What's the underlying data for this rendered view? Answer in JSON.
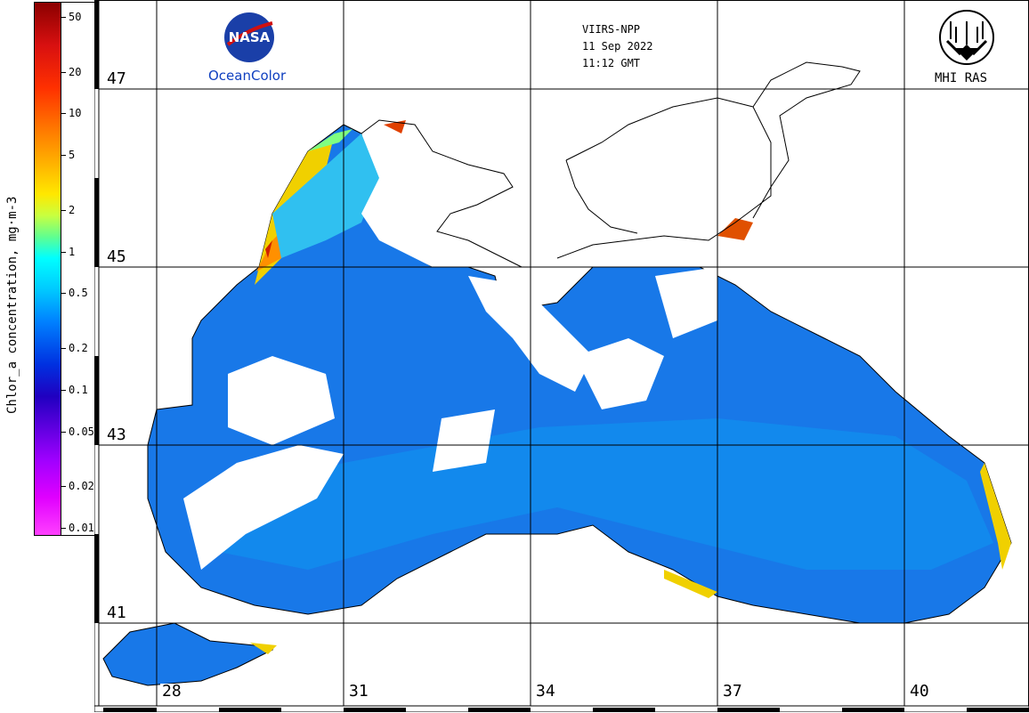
{
  "colorbar": {
    "title": "Chlor_a concentration, mg·m-3",
    "ticks": [
      {
        "label": "50",
        "value": 50
      },
      {
        "label": "20",
        "value": 20
      },
      {
        "label": "10",
        "value": 10
      },
      {
        "label": "5",
        "value": 5
      },
      {
        "label": "2",
        "value": 2
      },
      {
        "label": "1",
        "value": 1
      },
      {
        "label": "0.5",
        "value": 0.5
      },
      {
        "label": "0.2",
        "value": 0.2
      },
      {
        "label": "0.1",
        "value": 0.1
      },
      {
        "label": "0.05",
        "value": 0.05
      },
      {
        "label": "0.02",
        "value": 0.02
      },
      {
        "label": "0.01",
        "value": 0.01
      }
    ],
    "scale": "log",
    "range": [
      0.01,
      50
    ]
  },
  "header": {
    "sensor": "VIIRS-NPP",
    "date": "11 Sep 2022",
    "time": "11:12 GMT"
  },
  "logos": {
    "left_text": "OceanColor",
    "left_emblem": "NASA",
    "right_text": "MHI RAS"
  },
  "grid": {
    "latitudes": [
      {
        "label": "47",
        "value": 47
      },
      {
        "label": "45",
        "value": 45
      },
      {
        "label": "43",
        "value": 43
      },
      {
        "label": "41",
        "value": 41
      }
    ],
    "longitudes": [
      {
        "label": "28",
        "value": 28
      },
      {
        "label": "31",
        "value": 31
      },
      {
        "label": "34",
        "value": 34
      },
      {
        "label": "37",
        "value": 37
      },
      {
        "label": "40",
        "value": 40
      }
    ]
  },
  "colors": {
    "sea_low": "#1060e0",
    "sea_mid": "#10a0f0",
    "coastal_high": "#ffd000",
    "bloom": "#e02000",
    "cloud_mask": "#ffffff"
  }
}
